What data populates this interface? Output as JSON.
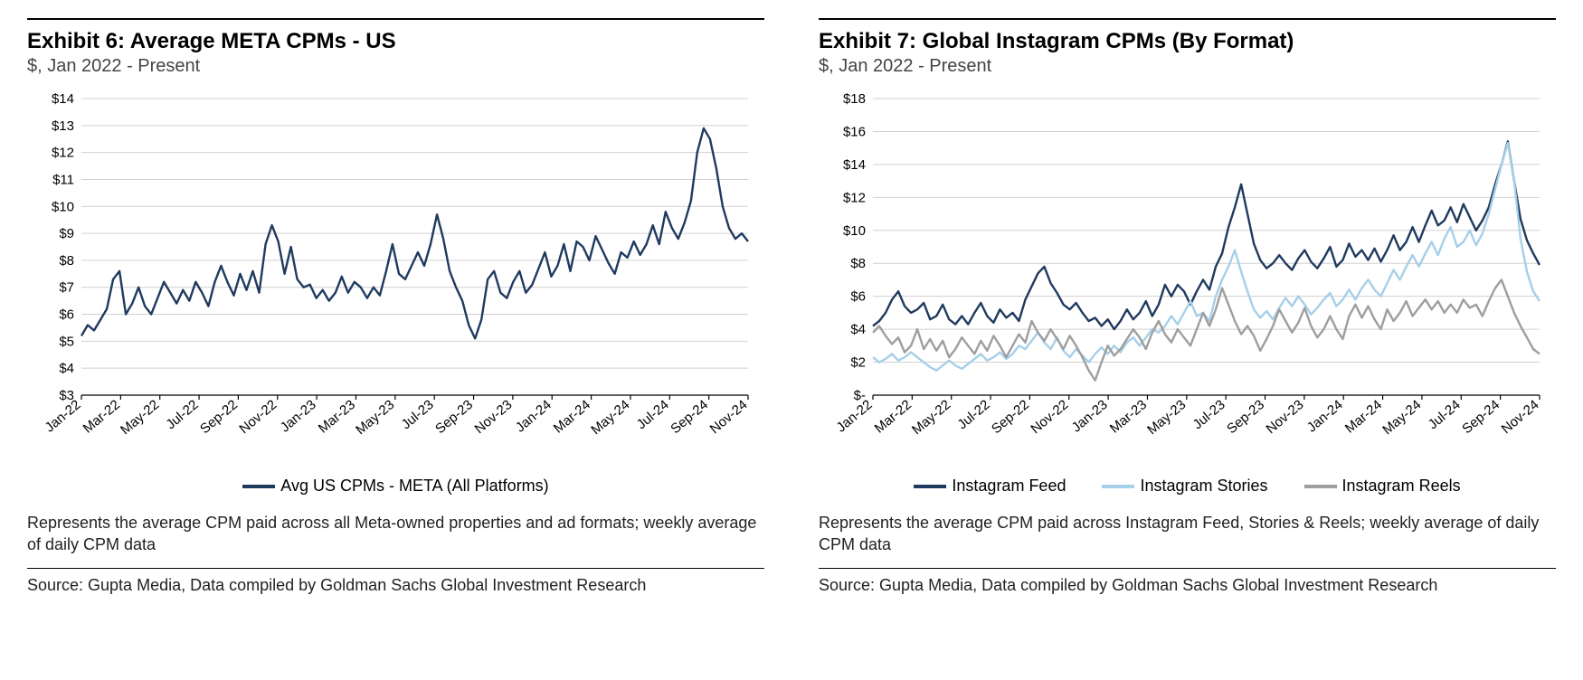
{
  "left": {
    "title": "Exhibit 6: Average META CPMs - US",
    "subtitle": "$, Jan 2022 - Present",
    "caption": "Represents the average CPM paid across all Meta-owned properties and ad formats; weekly average of daily CPM data",
    "source": "Source: Gupta Media, Data compiled by Goldman Sachs Global Investment Research",
    "chart": {
      "type": "line",
      "ylim": [
        3,
        14
      ],
      "ytick_step": 1,
      "ytick_prefix": "$",
      "background_color": "#ffffff",
      "grid_color": "#d0d0d0",
      "axis_color": "#000000",
      "tick_fontsize": 15,
      "line_width": 2.4,
      "x_categories": [
        "Jan-22",
        "Mar-22",
        "May-22",
        "Jul-22",
        "Sep-22",
        "Nov-22",
        "Jan-23",
        "Mar-23",
        "May-23",
        "Jul-23",
        "Sep-23",
        "Nov-23",
        "Jan-24",
        "Mar-24",
        "May-24",
        "Jul-24",
        "Sep-24",
        "Nov-24"
      ],
      "series": [
        {
          "name": "Avg US CPMs - META (All Platforms)",
          "color": "#1f3a5f",
          "values": [
            5.2,
            5.6,
            5.4,
            5.8,
            6.2,
            7.3,
            7.6,
            6.0,
            6.4,
            7.0,
            6.3,
            6.0,
            6.6,
            7.2,
            6.8,
            6.4,
            6.9,
            6.5,
            7.2,
            6.8,
            6.3,
            7.2,
            7.8,
            7.2,
            6.7,
            7.5,
            6.9,
            7.6,
            6.8,
            8.6,
            9.3,
            8.7,
            7.5,
            8.5,
            7.3,
            7.0,
            7.1,
            6.6,
            6.9,
            6.5,
            6.8,
            7.4,
            6.8,
            7.2,
            7.0,
            6.6,
            7.0,
            6.7,
            7.6,
            8.6,
            7.5,
            7.3,
            7.8,
            8.3,
            7.8,
            8.6,
            9.7,
            8.8,
            7.6,
            7.0,
            6.5,
            5.6,
            5.1,
            5.8,
            7.3,
            7.6,
            6.8,
            6.6,
            7.2,
            7.6,
            6.8,
            7.1,
            7.7,
            8.3,
            7.4,
            7.8,
            8.6,
            7.6,
            8.7,
            8.5,
            8.0,
            8.9,
            8.4,
            7.9,
            7.5,
            8.3,
            8.1,
            8.7,
            8.2,
            8.6,
            9.3,
            8.6,
            9.8,
            9.2,
            8.8,
            9.4,
            10.2,
            12.0,
            12.9,
            12.5,
            11.4,
            10.0,
            9.2,
            8.8,
            9.0,
            8.7
          ]
        }
      ],
      "legend": [
        {
          "label": "Avg US CPMs - META (All Platforms)",
          "color": "#1f3a5f"
        }
      ]
    }
  },
  "right": {
    "title": "Exhibit 7: Global Instagram CPMs (By Format)",
    "subtitle": "$, Jan 2022 - Present",
    "caption": "Represents the average CPM paid across Instagram Feed, Stories & Reels; weekly average of daily CPM data",
    "source": "Source: Gupta Media, Data compiled by Goldman Sachs Global Investment Research",
    "chart": {
      "type": "line",
      "ylim": [
        0,
        18
      ],
      "ytick_step": 2,
      "ytick_prefix": "$",
      "ytick_zero_label": "$-",
      "background_color": "#ffffff",
      "grid_color": "#d0d0d0",
      "axis_color": "#000000",
      "tick_fontsize": 15,
      "line_width": 2.4,
      "x_categories": [
        "Jan-22",
        "Mar-22",
        "May-22",
        "Jul-22",
        "Sep-22",
        "Nov-22",
        "Jan-23",
        "Mar-23",
        "May-23",
        "Jul-23",
        "Sep-23",
        "Nov-23",
        "Jan-24",
        "Mar-24",
        "May-24",
        "Jul-24",
        "Sep-24",
        "Nov-24"
      ],
      "series": [
        {
          "name": "Instagram Feed",
          "color": "#1f3a5f",
          "values": [
            4.2,
            4.5,
            5.0,
            5.8,
            6.3,
            5.4,
            5.0,
            5.2,
            5.6,
            4.6,
            4.8,
            5.5,
            4.6,
            4.3,
            4.8,
            4.3,
            5.0,
            5.6,
            4.8,
            4.4,
            5.2,
            4.7,
            5.0,
            4.5,
            5.8,
            6.6,
            7.4,
            7.8,
            6.8,
            6.2,
            5.5,
            5.2,
            5.6,
            5.0,
            4.5,
            4.7,
            4.2,
            4.6,
            4.0,
            4.5,
            5.2,
            4.6,
            5.0,
            5.7,
            4.8,
            5.5,
            6.7,
            6.0,
            6.7,
            6.3,
            5.5,
            6.3,
            7.0,
            6.4,
            7.8,
            8.6,
            10.2,
            11.4,
            12.8,
            11.0,
            9.2,
            8.2,
            7.7,
            8.0,
            8.5,
            8.0,
            7.6,
            8.3,
            8.8,
            8.1,
            7.7,
            8.3,
            9.0,
            7.8,
            8.2,
            9.2,
            8.4,
            8.8,
            8.2,
            8.9,
            8.1,
            8.8,
            9.7,
            8.8,
            9.3,
            10.2,
            9.3,
            10.3,
            11.2,
            10.3,
            10.6,
            11.4,
            10.5,
            11.6,
            10.8,
            10.0,
            10.6,
            11.4,
            12.8,
            14.0,
            15.4,
            13.0,
            10.7,
            9.4,
            8.6,
            7.9
          ]
        },
        {
          "name": "Instagram Stories",
          "color": "#a6cfe8",
          "values": [
            2.3,
            2.0,
            2.2,
            2.5,
            2.1,
            2.3,
            2.6,
            2.3,
            2.0,
            1.7,
            1.5,
            1.8,
            2.1,
            1.8,
            1.6,
            1.9,
            2.2,
            2.5,
            2.1,
            2.3,
            2.6,
            2.2,
            2.5,
            3.0,
            2.8,
            3.3,
            3.8,
            3.2,
            2.8,
            3.5,
            2.7,
            2.3,
            2.8,
            2.4,
            2.0,
            2.5,
            2.9,
            2.5,
            3.0,
            2.6,
            3.2,
            3.5,
            3.0,
            3.5,
            4.0,
            3.8,
            4.2,
            4.8,
            4.3,
            5.0,
            5.7,
            4.8,
            5.0,
            4.5,
            6.0,
            7.0,
            7.8,
            8.8,
            7.5,
            6.3,
            5.2,
            4.7,
            5.1,
            4.6,
            5.3,
            5.9,
            5.4,
            6.0,
            5.5,
            4.9,
            5.3,
            5.8,
            6.2,
            5.4,
            5.8,
            6.4,
            5.8,
            6.5,
            7.0,
            6.4,
            6.0,
            6.8,
            7.6,
            7.0,
            7.8,
            8.5,
            7.8,
            8.6,
            9.3,
            8.5,
            9.5,
            10.2,
            9.0,
            9.3,
            10.0,
            9.1,
            9.8,
            11.0,
            12.5,
            14.0,
            15.3,
            13.0,
            9.5,
            7.5,
            6.3,
            5.7
          ]
        },
        {
          "name": "Instagram Reels",
          "color": "#9e9e9e",
          "values": [
            3.8,
            4.2,
            3.6,
            3.1,
            3.5,
            2.6,
            3.0,
            4.0,
            2.8,
            3.4,
            2.7,
            3.3,
            2.3,
            2.8,
            3.5,
            3.0,
            2.5,
            3.3,
            2.7,
            3.6,
            3.0,
            2.3,
            3.0,
            3.7,
            3.2,
            4.5,
            3.8,
            3.3,
            4.0,
            3.4,
            2.8,
            3.6,
            3.0,
            2.3,
            1.5,
            0.9,
            2.0,
            3.0,
            2.4,
            2.8,
            3.4,
            4.0,
            3.5,
            2.8,
            3.8,
            4.5,
            3.7,
            3.2,
            4.0,
            3.5,
            3.0,
            4.0,
            5.0,
            4.2,
            5.2,
            6.5,
            5.5,
            4.5,
            3.7,
            4.2,
            3.6,
            2.7,
            3.4,
            4.2,
            5.2,
            4.5,
            3.8,
            4.4,
            5.3,
            4.2,
            3.5,
            4.0,
            4.8,
            4.0,
            3.4,
            4.8,
            5.5,
            4.7,
            5.4,
            4.6,
            4.0,
            5.2,
            4.5,
            5.0,
            5.7,
            4.8,
            5.3,
            5.8,
            5.2,
            5.7,
            5.0,
            5.5,
            5.0,
            5.8,
            5.3,
            5.5,
            4.8,
            5.7,
            6.5,
            7.0,
            6.0,
            5.0,
            4.2,
            3.5,
            2.8,
            2.5
          ]
        }
      ],
      "legend": [
        {
          "label": "Instagram Feed",
          "color": "#1f3a5f"
        },
        {
          "label": "Instagram Stories",
          "color": "#a6cfe8"
        },
        {
          "label": "Instagram Reels",
          "color": "#9e9e9e"
        }
      ]
    }
  }
}
